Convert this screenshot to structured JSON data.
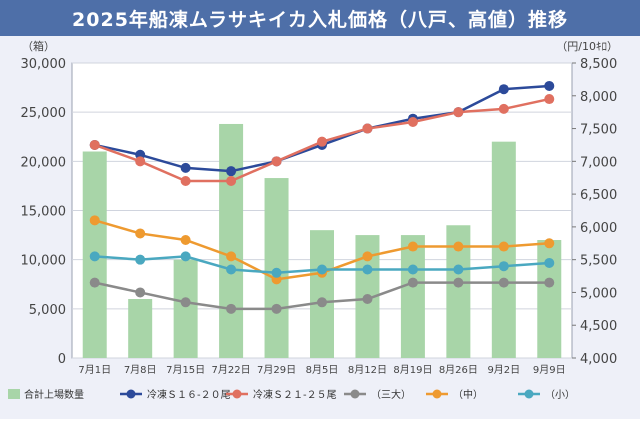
{
  "title": "2025年船凍ムラサキイカ入札価格（八戸、高値）推移",
  "chart_data": {
    "type": "bar+line",
    "categories": [
      "7月1日",
      "7月8日",
      "7月15日",
      "7月22日",
      "7月29日",
      "8月5日",
      "8月12日",
      "8月19日",
      "8月26日",
      "9月2日",
      "9月9日"
    ],
    "left_axis": {
      "unit": "（箱）",
      "ylim": [
        0,
        30000
      ],
      "ticks": [
        "0",
        "5,000",
        "10,000",
        "15,000",
        "20,000",
        "25,000",
        "30,000"
      ]
    },
    "right_axis": {
      "unit": "（円/10ｷﾛ）",
      "ylim": [
        4000,
        8500
      ],
      "ticks": [
        "4,000",
        "4,500",
        "5,000",
        "5,500",
        "6,000",
        "6,500",
        "7,000",
        "7,500",
        "8,000",
        "8,500"
      ]
    },
    "bars": {
      "name": "合計上場数量",
      "color": "#a8d5a8",
      "values": [
        21000,
        6000,
        10000,
        23800,
        18300,
        13000,
        12500,
        12500,
        13500,
        22000,
        12000
      ]
    },
    "series": [
      {
        "name": "冷凍Ｓ１６-２０尾",
        "color": "#2c4a9a",
        "axis": "right",
        "values": [
          7250,
          7100,
          6900,
          6850,
          7000,
          7250,
          7500,
          7650,
          7750,
          8100,
          8150
        ]
      },
      {
        "name": "冷凍Ｓ２１-２５尾",
        "color": "#e07060",
        "axis": "right",
        "values": [
          7250,
          7000,
          6700,
          6700,
          7000,
          7300,
          7500,
          7600,
          7750,
          7800,
          7950
        ]
      },
      {
        "name": "（三大）",
        "color": "#8a8a8a",
        "axis": "right",
        "values": [
          5150,
          5000,
          4850,
          4750,
          4750,
          4850,
          4900,
          5150,
          5150,
          5150,
          5150
        ]
      },
      {
        "name": "（中）",
        "color": "#ee9a30",
        "axis": "right",
        "values": [
          6100,
          5900,
          5800,
          5550,
          5200,
          5300,
          5550,
          5700,
          5700,
          5700,
          5750
        ]
      },
      {
        "name": "（小）",
        "color": "#4aa8c0",
        "axis": "right",
        "values": [
          5550,
          5500,
          5550,
          5350,
          5300,
          5350,
          5350,
          5350,
          5350,
          5400,
          5450
        ]
      }
    ],
    "grid": "horizontal",
    "legend": "bottom"
  }
}
